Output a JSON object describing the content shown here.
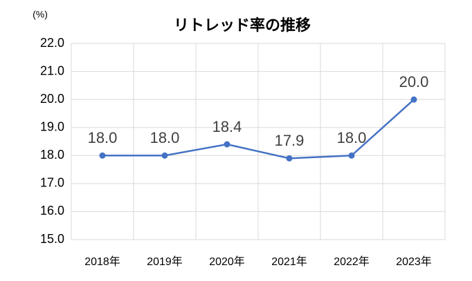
{
  "chart_data": {
    "type": "line",
    "title": "リトレッド率の推移",
    "y_label": "(%)",
    "categories": [
      "2018年",
      "2019年",
      "2020年",
      "2021年",
      "2022年",
      "2023年"
    ],
    "values": [
      18.0,
      18.0,
      18.4,
      17.9,
      18.0,
      20.0
    ],
    "value_labels": [
      "18.0",
      "18.0",
      "18.4",
      "17.9",
      "18.0",
      "20.0"
    ],
    "color": "#4472c4",
    "ylim": [
      15,
      22
    ],
    "yticks": [
      {
        "value": 15,
        "label": "15.0"
      },
      {
        "value": 16,
        "label": "16.0"
      },
      {
        "value": 17,
        "label": "17.0"
      },
      {
        "value": 18,
        "label": "18.0"
      },
      {
        "value": 19,
        "label": "19.0"
      },
      {
        "value": 20,
        "label": "20.0"
      },
      {
        "value": 21,
        "label": "21.0"
      },
      {
        "value": 22,
        "label": "22.0"
      }
    ],
    "grid": true
  }
}
